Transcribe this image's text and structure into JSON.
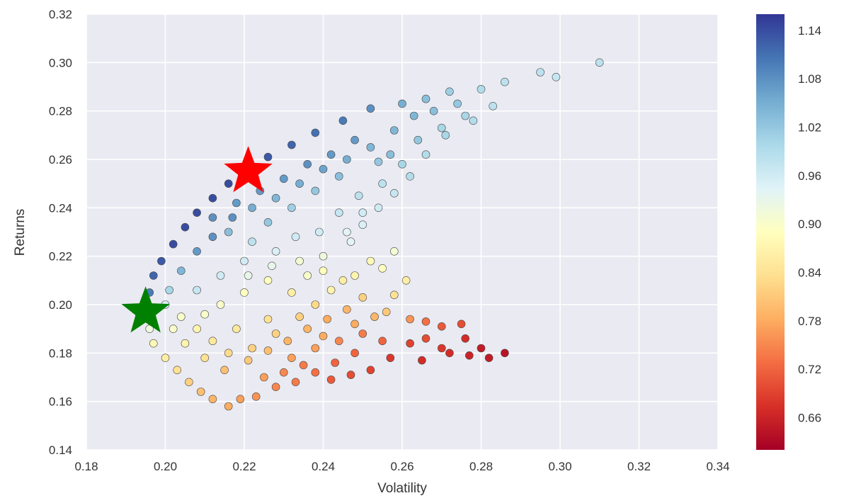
{
  "chart_data": {
    "type": "scatter",
    "title": "",
    "xlabel": "Volatility",
    "ylabel": "Returns",
    "xlim": [
      0.18,
      0.34
    ],
    "ylim": [
      0.14,
      0.32
    ],
    "x_ticks": [
      "0.18",
      "0.20",
      "0.22",
      "0.24",
      "0.26",
      "0.28",
      "0.30",
      "0.32",
      "0.34"
    ],
    "y_ticks": [
      "0.14",
      "0.16",
      "0.18",
      "0.20",
      "0.22",
      "0.24",
      "0.26",
      "0.28",
      "0.30",
      "0.32"
    ],
    "grid": true,
    "background_color": "#eaeaf2",
    "colormap": "RdYlBu",
    "colorbar": {
      "range": [
        0.62,
        1.16
      ],
      "ticks": [
        "0.66",
        "0.72",
        "0.78",
        "0.84",
        "0.90",
        "0.96",
        "1.02",
        "1.08",
        "1.14"
      ]
    },
    "markers": [
      {
        "name": "max-sharpe-star",
        "x": 0.221,
        "y": 0.255,
        "color": "#ff0000"
      },
      {
        "name": "min-volatility-star",
        "x": 0.195,
        "y": 0.197,
        "color": "#008000"
      }
    ],
    "points": [
      [
        0.196,
        0.205,
        1.1
      ],
      [
        0.197,
        0.212,
        1.12
      ],
      [
        0.199,
        0.218,
        1.13
      ],
      [
        0.202,
        0.225,
        1.14
      ],
      [
        0.205,
        0.232,
        1.14
      ],
      [
        0.208,
        0.238,
        1.14
      ],
      [
        0.212,
        0.244,
        1.14
      ],
      [
        0.216,
        0.25,
        1.14
      ],
      [
        0.221,
        0.256,
        1.14
      ],
      [
        0.226,
        0.261,
        1.13
      ],
      [
        0.232,
        0.266,
        1.12
      ],
      [
        0.238,
        0.271,
        1.11
      ],
      [
        0.245,
        0.276,
        1.1
      ],
      [
        0.252,
        0.281,
        1.08
      ],
      [
        0.26,
        0.283,
        1.05
      ],
      [
        0.266,
        0.285,
        1.03
      ],
      [
        0.272,
        0.288,
        1.01
      ],
      [
        0.28,
        0.289,
        0.99
      ],
      [
        0.286,
        0.292,
        0.98
      ],
      [
        0.295,
        0.296,
        0.98
      ],
      [
        0.299,
        0.294,
        0.97
      ],
      [
        0.31,
        0.3,
        0.98
      ],
      [
        0.283,
        0.282,
        0.98
      ],
      [
        0.278,
        0.276,
        0.99
      ],
      [
        0.27,
        0.273,
        1.0
      ],
      [
        0.264,
        0.268,
        1.02
      ],
      [
        0.257,
        0.262,
        1.03
      ],
      [
        0.254,
        0.259,
        1.02
      ],
      [
        0.262,
        0.253,
        0.99
      ],
      [
        0.258,
        0.246,
        0.97
      ],
      [
        0.254,
        0.24,
        0.96
      ],
      [
        0.25,
        0.233,
        0.95
      ],
      [
        0.247,
        0.226,
        0.94
      ],
      [
        0.258,
        0.222,
        0.91
      ],
      [
        0.255,
        0.215,
        0.89
      ],
      [
        0.261,
        0.21,
        0.86
      ],
      [
        0.258,
        0.204,
        0.84
      ],
      [
        0.256,
        0.197,
        0.81
      ],
      [
        0.262,
        0.194,
        0.76
      ],
      [
        0.266,
        0.193,
        0.73
      ],
      [
        0.27,
        0.191,
        0.71
      ],
      [
        0.275,
        0.192,
        0.7
      ],
      [
        0.266,
        0.186,
        0.7
      ],
      [
        0.262,
        0.184,
        0.69
      ],
      [
        0.27,
        0.182,
        0.68
      ],
      [
        0.276,
        0.186,
        0.67
      ],
      [
        0.28,
        0.182,
        0.65
      ],
      [
        0.286,
        0.18,
        0.64
      ],
      [
        0.282,
        0.178,
        0.65
      ],
      [
        0.277,
        0.179,
        0.66
      ],
      [
        0.272,
        0.18,
        0.67
      ],
      [
        0.265,
        0.177,
        0.67
      ],
      [
        0.257,
        0.178,
        0.68
      ],
      [
        0.252,
        0.173,
        0.69
      ],
      [
        0.247,
        0.171,
        0.7
      ],
      [
        0.242,
        0.169,
        0.71
      ],
      [
        0.238,
        0.172,
        0.73
      ],
      [
        0.233,
        0.168,
        0.74
      ],
      [
        0.228,
        0.166,
        0.75
      ],
      [
        0.223,
        0.162,
        0.76
      ],
      [
        0.219,
        0.161,
        0.77
      ],
      [
        0.216,
        0.158,
        0.78
      ],
      [
        0.212,
        0.161,
        0.79
      ],
      [
        0.209,
        0.164,
        0.8
      ],
      [
        0.206,
        0.168,
        0.82
      ],
      [
        0.203,
        0.173,
        0.84
      ],
      [
        0.2,
        0.178,
        0.86
      ],
      [
        0.197,
        0.184,
        0.88
      ],
      [
        0.196,
        0.19,
        0.92
      ],
      [
        0.196,
        0.198,
        0.97
      ],
      [
        0.2,
        0.2,
        0.95
      ],
      [
        0.204,
        0.195,
        0.9
      ],
      [
        0.208,
        0.19,
        0.87
      ],
      [
        0.212,
        0.185,
        0.85
      ],
      [
        0.216,
        0.18,
        0.83
      ],
      [
        0.221,
        0.177,
        0.81
      ],
      [
        0.226,
        0.181,
        0.8
      ],
      [
        0.231,
        0.185,
        0.79
      ],
      [
        0.236,
        0.19,
        0.79
      ],
      [
        0.241,
        0.194,
        0.78
      ],
      [
        0.246,
        0.198,
        0.79
      ],
      [
        0.25,
        0.203,
        0.82
      ],
      [
        0.245,
        0.21,
        0.86
      ],
      [
        0.24,
        0.214,
        0.89
      ],
      [
        0.234,
        0.218,
        0.91
      ],
      [
        0.228,
        0.222,
        0.95
      ],
      [
        0.222,
        0.226,
        0.98
      ],
      [
        0.216,
        0.23,
        1.03
      ],
      [
        0.212,
        0.236,
        1.08
      ],
      [
        0.218,
        0.242,
        1.07
      ],
      [
        0.224,
        0.247,
        1.07
      ],
      [
        0.23,
        0.252,
        1.07
      ],
      [
        0.236,
        0.258,
        1.08
      ],
      [
        0.242,
        0.262,
        1.07
      ],
      [
        0.248,
        0.268,
        1.07
      ],
      [
        0.244,
        0.253,
        1.03
      ],
      [
        0.238,
        0.247,
        1.02
      ],
      [
        0.232,
        0.24,
        1.01
      ],
      [
        0.226,
        0.234,
        1.02
      ],
      [
        0.22,
        0.218,
        0.96
      ],
      [
        0.214,
        0.212,
        0.96
      ],
      [
        0.208,
        0.206,
        0.97
      ],
      [
        0.21,
        0.196,
        0.9
      ],
      [
        0.214,
        0.2,
        0.9
      ],
      [
        0.22,
        0.205,
        0.89
      ],
      [
        0.226,
        0.21,
        0.89
      ],
      [
        0.232,
        0.205,
        0.86
      ],
      [
        0.238,
        0.2,
        0.83
      ],
      [
        0.226,
        0.194,
        0.84
      ],
      [
        0.218,
        0.19,
        0.85
      ],
      [
        0.232,
        0.178,
        0.77
      ],
      [
        0.238,
        0.182,
        0.77
      ],
      [
        0.244,
        0.185,
        0.75
      ],
      [
        0.25,
        0.188,
        0.74
      ],
      [
        0.255,
        0.185,
        0.72
      ],
      [
        0.248,
        0.18,
        0.72
      ],
      [
        0.243,
        0.176,
        0.72
      ],
      [
        0.225,
        0.17,
        0.77
      ],
      [
        0.215,
        0.173,
        0.8
      ],
      [
        0.21,
        0.178,
        0.84
      ],
      [
        0.205,
        0.184,
        0.87
      ],
      [
        0.202,
        0.19,
        0.9
      ],
      [
        0.201,
        0.206,
        1.0
      ],
      [
        0.204,
        0.214,
        1.04
      ],
      [
        0.208,
        0.222,
        1.07
      ],
      [
        0.212,
        0.228,
        1.08
      ],
      [
        0.217,
        0.236,
        1.08
      ],
      [
        0.222,
        0.24,
        1.05
      ],
      [
        0.228,
        0.244,
        1.04
      ],
      [
        0.234,
        0.25,
        1.05
      ],
      [
        0.24,
        0.256,
        1.06
      ],
      [
        0.246,
        0.26,
        1.05
      ],
      [
        0.252,
        0.265,
        1.04
      ],
      [
        0.258,
        0.272,
        1.04
      ],
      [
        0.263,
        0.278,
        1.04
      ],
      [
        0.268,
        0.28,
        1.03
      ],
      [
        0.274,
        0.283,
        1.02
      ],
      [
        0.249,
        0.245,
        0.98
      ],
      [
        0.244,
        0.238,
        0.97
      ],
      [
        0.239,
        0.23,
        0.96
      ],
      [
        0.233,
        0.228,
        0.96
      ],
      [
        0.227,
        0.216,
        0.93
      ],
      [
        0.221,
        0.212,
        0.93
      ],
      [
        0.236,
        0.212,
        0.9
      ],
      [
        0.242,
        0.206,
        0.87
      ],
      [
        0.248,
        0.212,
        0.87
      ],
      [
        0.252,
        0.218,
        0.88
      ],
      [
        0.253,
        0.195,
        0.79
      ],
      [
        0.248,
        0.192,
        0.78
      ],
      [
        0.24,
        0.187,
        0.78
      ],
      [
        0.23,
        0.172,
        0.75
      ],
      [
        0.235,
        0.175,
        0.74
      ],
      [
        0.222,
        0.182,
        0.82
      ],
      [
        0.228,
        0.188,
        0.82
      ],
      [
        0.234,
        0.195,
        0.82
      ],
      [
        0.24,
        0.22,
        0.92
      ],
      [
        0.246,
        0.23,
        0.94
      ],
      [
        0.25,
        0.238,
        0.96
      ],
      [
        0.255,
        0.25,
        0.98
      ],
      [
        0.26,
        0.258,
        1.0
      ],
      [
        0.266,
        0.262,
        0.99
      ],
      [
        0.271,
        0.27,
        1.0
      ],
      [
        0.276,
        0.278,
        1.0
      ]
    ]
  }
}
